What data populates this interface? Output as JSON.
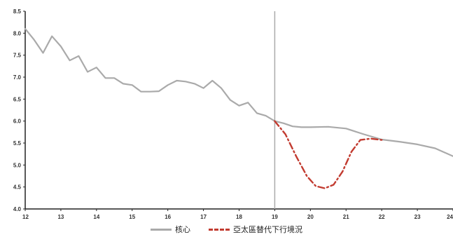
{
  "chart_data": {
    "type": "line",
    "x_ticks": [
      "12",
      "13",
      "14",
      "15",
      "16",
      "17",
      "18",
      "19",
      "20",
      "21",
      "22",
      "23",
      "24"
    ],
    "y_ticks": [
      "4.0",
      "4.5",
      "5.0",
      "5.5",
      "6.0",
      "6.5",
      "7.0",
      "7.5",
      "8.0",
      "8.5"
    ],
    "xlim": [
      12,
      24
    ],
    "ylim": [
      4.0,
      8.5
    ],
    "vertical_line_x": 19,
    "series": [
      {
        "name": "核心",
        "color": "#aaaaaa",
        "style": "solid",
        "points": [
          [
            12.0,
            8.1
          ],
          [
            12.25,
            7.85
          ],
          [
            12.5,
            7.55
          ],
          [
            12.75,
            7.93
          ],
          [
            13.0,
            7.7
          ],
          [
            13.25,
            7.38
          ],
          [
            13.5,
            7.48
          ],
          [
            13.75,
            7.12
          ],
          [
            14.0,
            7.22
          ],
          [
            14.25,
            6.98
          ],
          [
            14.5,
            6.98
          ],
          [
            14.75,
            6.85
          ],
          [
            15.0,
            6.82
          ],
          [
            15.25,
            6.67
          ],
          [
            15.5,
            6.67
          ],
          [
            15.75,
            6.68
          ],
          [
            16.0,
            6.82
          ],
          [
            16.25,
            6.92
          ],
          [
            16.5,
            6.9
          ],
          [
            16.75,
            6.85
          ],
          [
            17.0,
            6.75
          ],
          [
            17.25,
            6.92
          ],
          [
            17.5,
            6.75
          ],
          [
            17.75,
            6.48
          ],
          [
            18.0,
            6.35
          ],
          [
            18.25,
            6.42
          ],
          [
            18.5,
            6.18
          ],
          [
            18.75,
            6.12
          ],
          [
            19.0,
            6.0
          ],
          [
            19.25,
            5.95
          ],
          [
            19.5,
            5.88
          ],
          [
            19.75,
            5.86
          ],
          [
            20.0,
            5.86
          ],
          [
            20.5,
            5.87
          ],
          [
            21.0,
            5.83
          ],
          [
            21.5,
            5.7
          ],
          [
            22.0,
            5.58
          ],
          [
            22.5,
            5.53
          ],
          [
            23.0,
            5.47
          ],
          [
            23.5,
            5.38
          ],
          [
            24.0,
            5.2
          ]
        ]
      },
      {
        "name": "亞太區替代下行境況",
        "color": "#c23b30",
        "style": "dash-dot",
        "points": [
          [
            19.0,
            6.0
          ],
          [
            19.3,
            5.7
          ],
          [
            19.6,
            5.2
          ],
          [
            19.9,
            4.75
          ],
          [
            20.15,
            4.52
          ],
          [
            20.4,
            4.47
          ],
          [
            20.65,
            4.55
          ],
          [
            20.9,
            4.85
          ],
          [
            21.15,
            5.3
          ],
          [
            21.4,
            5.57
          ],
          [
            21.7,
            5.6
          ],
          [
            22.0,
            5.57
          ]
        ]
      }
    ]
  }
}
